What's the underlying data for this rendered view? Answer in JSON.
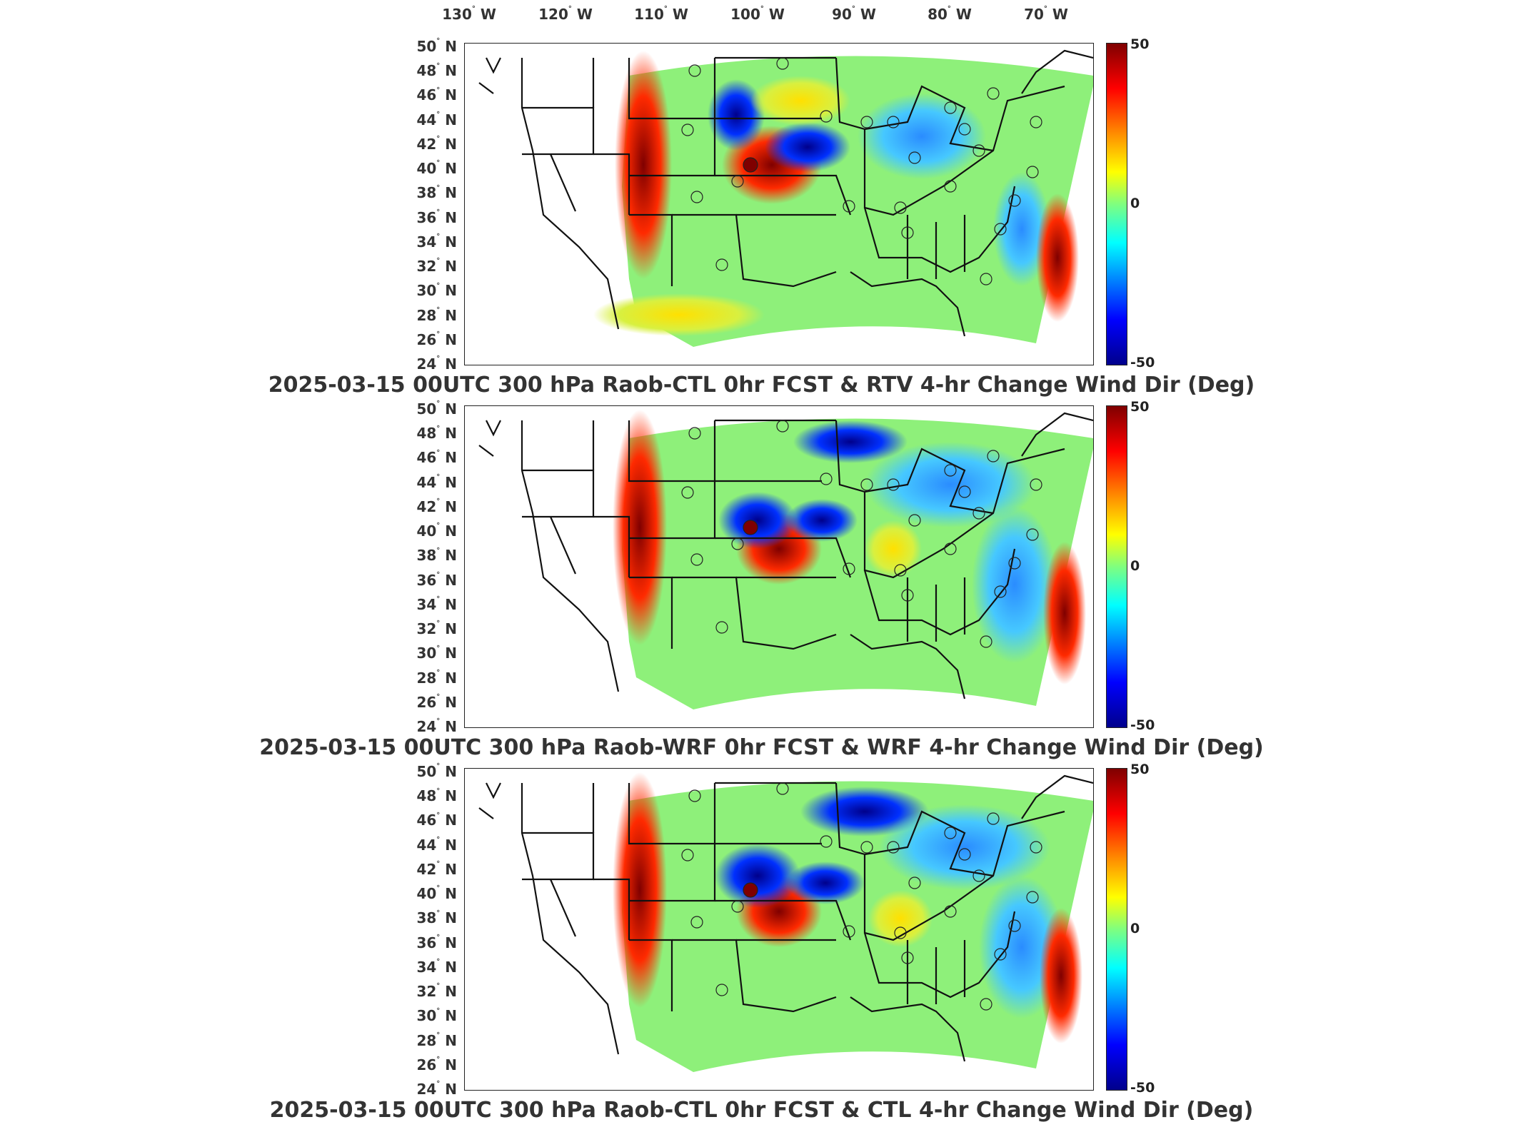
{
  "lon_labels": [
    {
      "deg": "130",
      "dir": "W"
    },
    {
      "deg": "120",
      "dir": "W"
    },
    {
      "deg": "110",
      "dir": "W"
    },
    {
      "deg": "100",
      "dir": "W"
    },
    {
      "deg": "90",
      "dir": "W"
    },
    {
      "deg": "80",
      "dir": "W"
    },
    {
      "deg": "70",
      "dir": "W"
    }
  ],
  "lat_labels": [
    "50",
    "48",
    "46",
    "44",
    "42",
    "40",
    "38",
    "36",
    "34",
    "32",
    "30",
    "28",
    "26",
    "24"
  ],
  "lat_dir": "N",
  "colorbar": {
    "max": "50",
    "mid": "0",
    "min": "-50"
  },
  "panels": [
    {
      "caption": "2025-03-15 00UTC 300 hPa Raob-CTL 0hr FCST & RTV 4-hr Change Wind Dir (Deg)"
    },
    {
      "caption": "2025-03-15 00UTC 300 hPa Raob-WRF 0hr FCST & WRF 4-hr Change Wind Dir (Deg)"
    },
    {
      "caption": "2025-03-15 00UTC 300 hPa Raob-CTL 0hr FCST & CTL 4-hr Change Wind Dir (Deg)"
    }
  ],
  "colors": {
    "red_max": "#7f0000",
    "blue_min": "#00008b",
    "field_mid": "#7fff7f"
  }
}
